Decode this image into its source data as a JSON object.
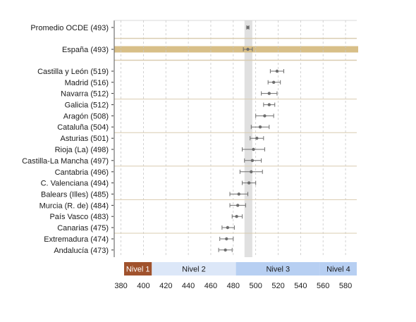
{
  "chart_data": {
    "type": "scatter",
    "subtype": "dot-with-confidence-interval",
    "x_axis": {
      "range": [
        374,
        590
      ],
      "ticks": [
        380,
        400,
        420,
        440,
        460,
        480,
        500,
        520,
        540,
        560,
        580
      ],
      "grid": "dashed vertical"
    },
    "reference_band": {
      "center": 493,
      "from": 490,
      "to": 497,
      "color": "#e0e0e0"
    },
    "rows": [
      {
        "label": "Promedio OCDE (493)",
        "value": 493,
        "ci": [
          492,
          494
        ],
        "group": 0
      },
      {
        "label": "España (493)",
        "value": 493,
        "ci": [
          489,
          497
        ],
        "group": 1,
        "highlight": true
      },
      {
        "label": "Castilla y León (519)",
        "value": 519,
        "ci": [
          513,
          525
        ],
        "group": 2
      },
      {
        "label": "Madrid (516)",
        "value": 516,
        "ci": [
          511,
          522
        ],
        "group": 2
      },
      {
        "label": "Navarra (512)",
        "value": 512,
        "ci": [
          505,
          519
        ],
        "group": 2
      },
      {
        "label": "Galicia (512)",
        "value": 512,
        "ci": [
          507,
          517
        ],
        "group": 3
      },
      {
        "label": "Aragón (508)",
        "value": 508,
        "ci": [
          500,
          516
        ],
        "group": 3
      },
      {
        "label": "Cataluña (504)",
        "value": 504,
        "ci": [
          496,
          512
        ],
        "group": 3
      },
      {
        "label": "Asturias (501)",
        "value": 501,
        "ci": [
          495,
          507
        ],
        "group": 4
      },
      {
        "label": "Rioja (La) (498)",
        "value": 498,
        "ci": [
          488,
          508
        ],
        "group": 4
      },
      {
        "label": "Castilla-La Mancha (497)",
        "value": 497,
        "ci": [
          490,
          505
        ],
        "group": 4
      },
      {
        "label": "Cantabria (496)",
        "value": 496,
        "ci": [
          486,
          506
        ],
        "group": 5
      },
      {
        "label": "C. Valenciana (494)",
        "value": 494,
        "ci": [
          488,
          500
        ],
        "group": 5
      },
      {
        "label": "Balears (Illes) (485)",
        "value": 485,
        "ci": [
          477,
          493
        ],
        "group": 5
      },
      {
        "label": "Murcia (R. de) (484)",
        "value": 484,
        "ci": [
          477,
          491
        ],
        "group": 6
      },
      {
        "label": "País Vasco (483)",
        "value": 483,
        "ci": [
          479,
          488
        ],
        "group": 6
      },
      {
        "label": "Canarias (475)",
        "value": 475,
        "ci": [
          470,
          481
        ],
        "group": 6
      },
      {
        "label": "Extremadura (474)",
        "value": 474,
        "ci": [
          468,
          480
        ],
        "group": 7
      },
      {
        "label": "Andalucía (473)",
        "value": 473,
        "ci": [
          467,
          479
        ],
        "group": 7
      }
    ],
    "levels": [
      {
        "label": "Nivel 1",
        "from": 374,
        "to": 407.47,
        "color": "#a0522d",
        "text_color": "#ffffff"
      },
      {
        "label": "Nivel 2",
        "from": 407.47,
        "to": 482.38,
        "color": "#dce7f8",
        "text_color": "#1a1a1a"
      },
      {
        "label": "Nivel 3",
        "from": 482.38,
        "to": 557.29,
        "color": "#b7cff2",
        "text_color": "#1a1a1a"
      },
      {
        "label": "Nivel 4",
        "from": 557.29,
        "to": 590,
        "color": "#b7cff2",
        "text_color": "#1a1a1a"
      }
    ],
    "colors": {
      "point": "#6e6e6e",
      "highlight_bar": "#d8bf88",
      "separator": "#d9ccb0",
      "grid": "#c8c8c8"
    }
  }
}
